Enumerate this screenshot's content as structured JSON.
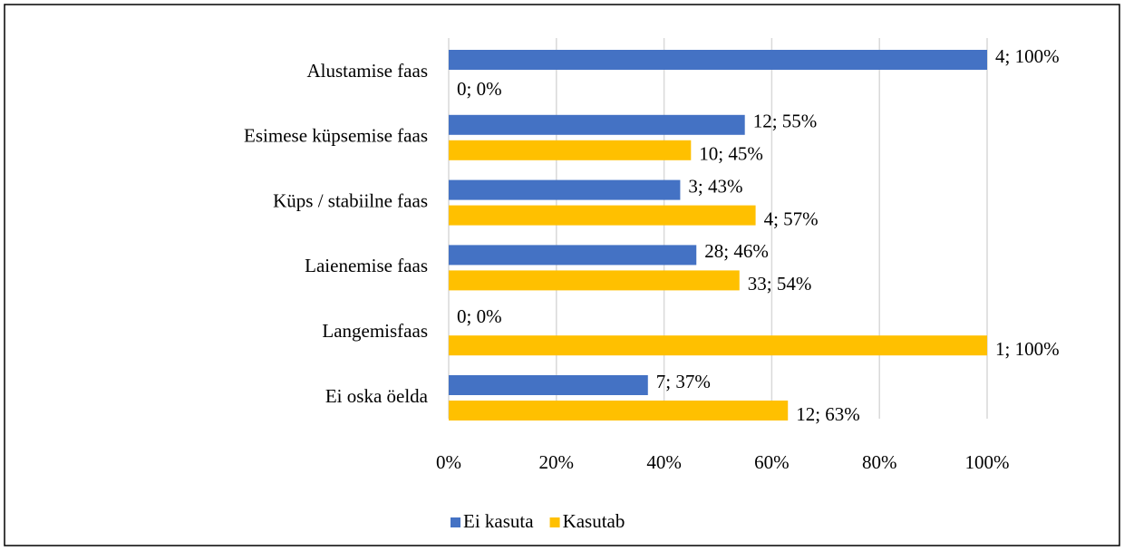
{
  "chart_data": {
    "type": "bar",
    "orientation": "horizontal",
    "categories": [
      "Alustamise faas",
      "Esimese küpsemise faas",
      "Küps / stabiilne faas",
      "Laienemise faas",
      "Langemisfaas",
      "Ei oska öelda"
    ],
    "series": [
      {
        "name": "Ei kasuta",
        "color": "#4472c4",
        "values": [
          100,
          55,
          43,
          46,
          0,
          37
        ],
        "value_labels": [
          "4; 100%",
          "12; 55%",
          "3; 43%",
          "28; 46%",
          "0; 0%",
          "7; 37%"
        ]
      },
      {
        "name": "Kasutab",
        "color": "#ffc000",
        "values": [
          0,
          45,
          57,
          54,
          100,
          63
        ],
        "value_labels": [
          "0; 0%",
          "10; 45%",
          "4; 57%",
          "33; 54%",
          "1; 100%",
          "12; 63%"
        ]
      }
    ],
    "xlim": [
      0,
      100
    ],
    "xticks": [
      {
        "value": 0,
        "label": "0%"
      },
      {
        "value": 20,
        "label": "20%"
      },
      {
        "value": 40,
        "label": "40%"
      },
      {
        "value": 60,
        "label": "60%"
      },
      {
        "value": 80,
        "label": "80%"
      },
      {
        "value": 100,
        "label": "100%"
      }
    ],
    "grid": true,
    "legend": "bottom"
  }
}
